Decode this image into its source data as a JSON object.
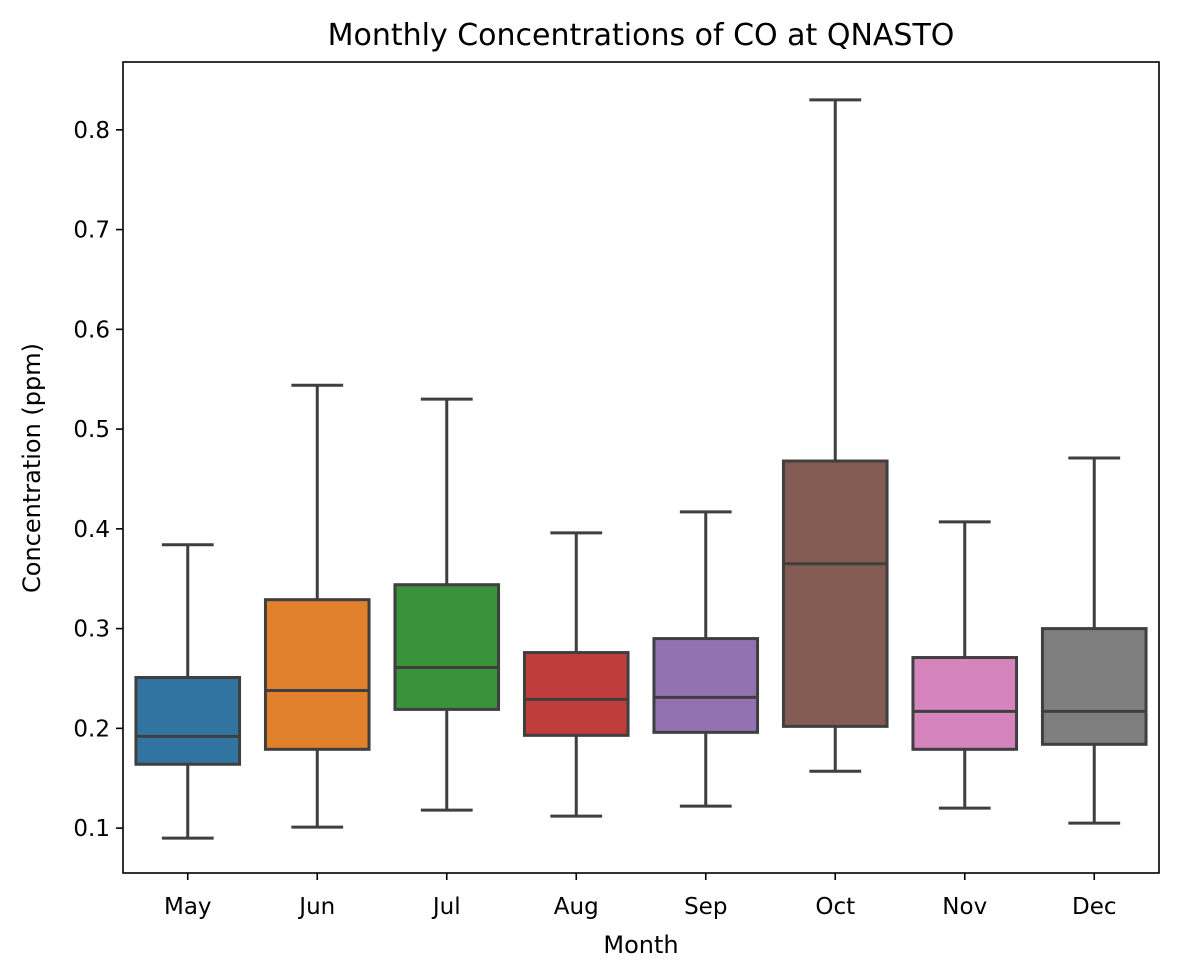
{
  "chart_data": {
    "type": "box",
    "title": "Monthly Concentrations of CO at QNASTO",
    "xlabel": "Month",
    "ylabel": "Concentration (ppm)",
    "ylim": [
      0.055,
      0.868
    ],
    "yticks": [
      0.1,
      0.2,
      0.3,
      0.4,
      0.5,
      0.6,
      0.7,
      0.8
    ],
    "ytick_labels": [
      "0.1",
      "0.2",
      "0.3",
      "0.4",
      "0.5",
      "0.6",
      "0.7",
      "0.8"
    ],
    "grid": false,
    "categories": [
      "May",
      "Jun",
      "Jul",
      "Aug",
      "Sep",
      "Oct",
      "Nov",
      "Dec"
    ],
    "boxes": [
      {
        "min": 0.09,
        "q1": 0.164,
        "median": 0.192,
        "q3": 0.251,
        "max": 0.384,
        "color": "#3274a1"
      },
      {
        "min": 0.101,
        "q1": 0.179,
        "median": 0.238,
        "q3": 0.329,
        "max": 0.544,
        "color": "#e1812c"
      },
      {
        "min": 0.118,
        "q1": 0.219,
        "median": 0.261,
        "q3": 0.344,
        "max": 0.53,
        "color": "#3a923a"
      },
      {
        "min": 0.112,
        "q1": 0.193,
        "median": 0.229,
        "q3": 0.276,
        "max": 0.396,
        "color": "#c03d3e"
      },
      {
        "min": 0.122,
        "q1": 0.196,
        "median": 0.231,
        "q3": 0.29,
        "max": 0.417,
        "color": "#9372b2"
      },
      {
        "min": 0.157,
        "q1": 0.202,
        "median": 0.365,
        "q3": 0.468,
        "max": 0.83,
        "color": "#845b53"
      },
      {
        "min": 0.12,
        "q1": 0.179,
        "median": 0.217,
        "q3": 0.271,
        "max": 0.407,
        "color": "#d684bd"
      },
      {
        "min": 0.105,
        "q1": 0.184,
        "median": 0.217,
        "q3": 0.3,
        "max": 0.471,
        "color": "#7f7f7f"
      }
    ],
    "line_color": "#3f3f3f"
  }
}
